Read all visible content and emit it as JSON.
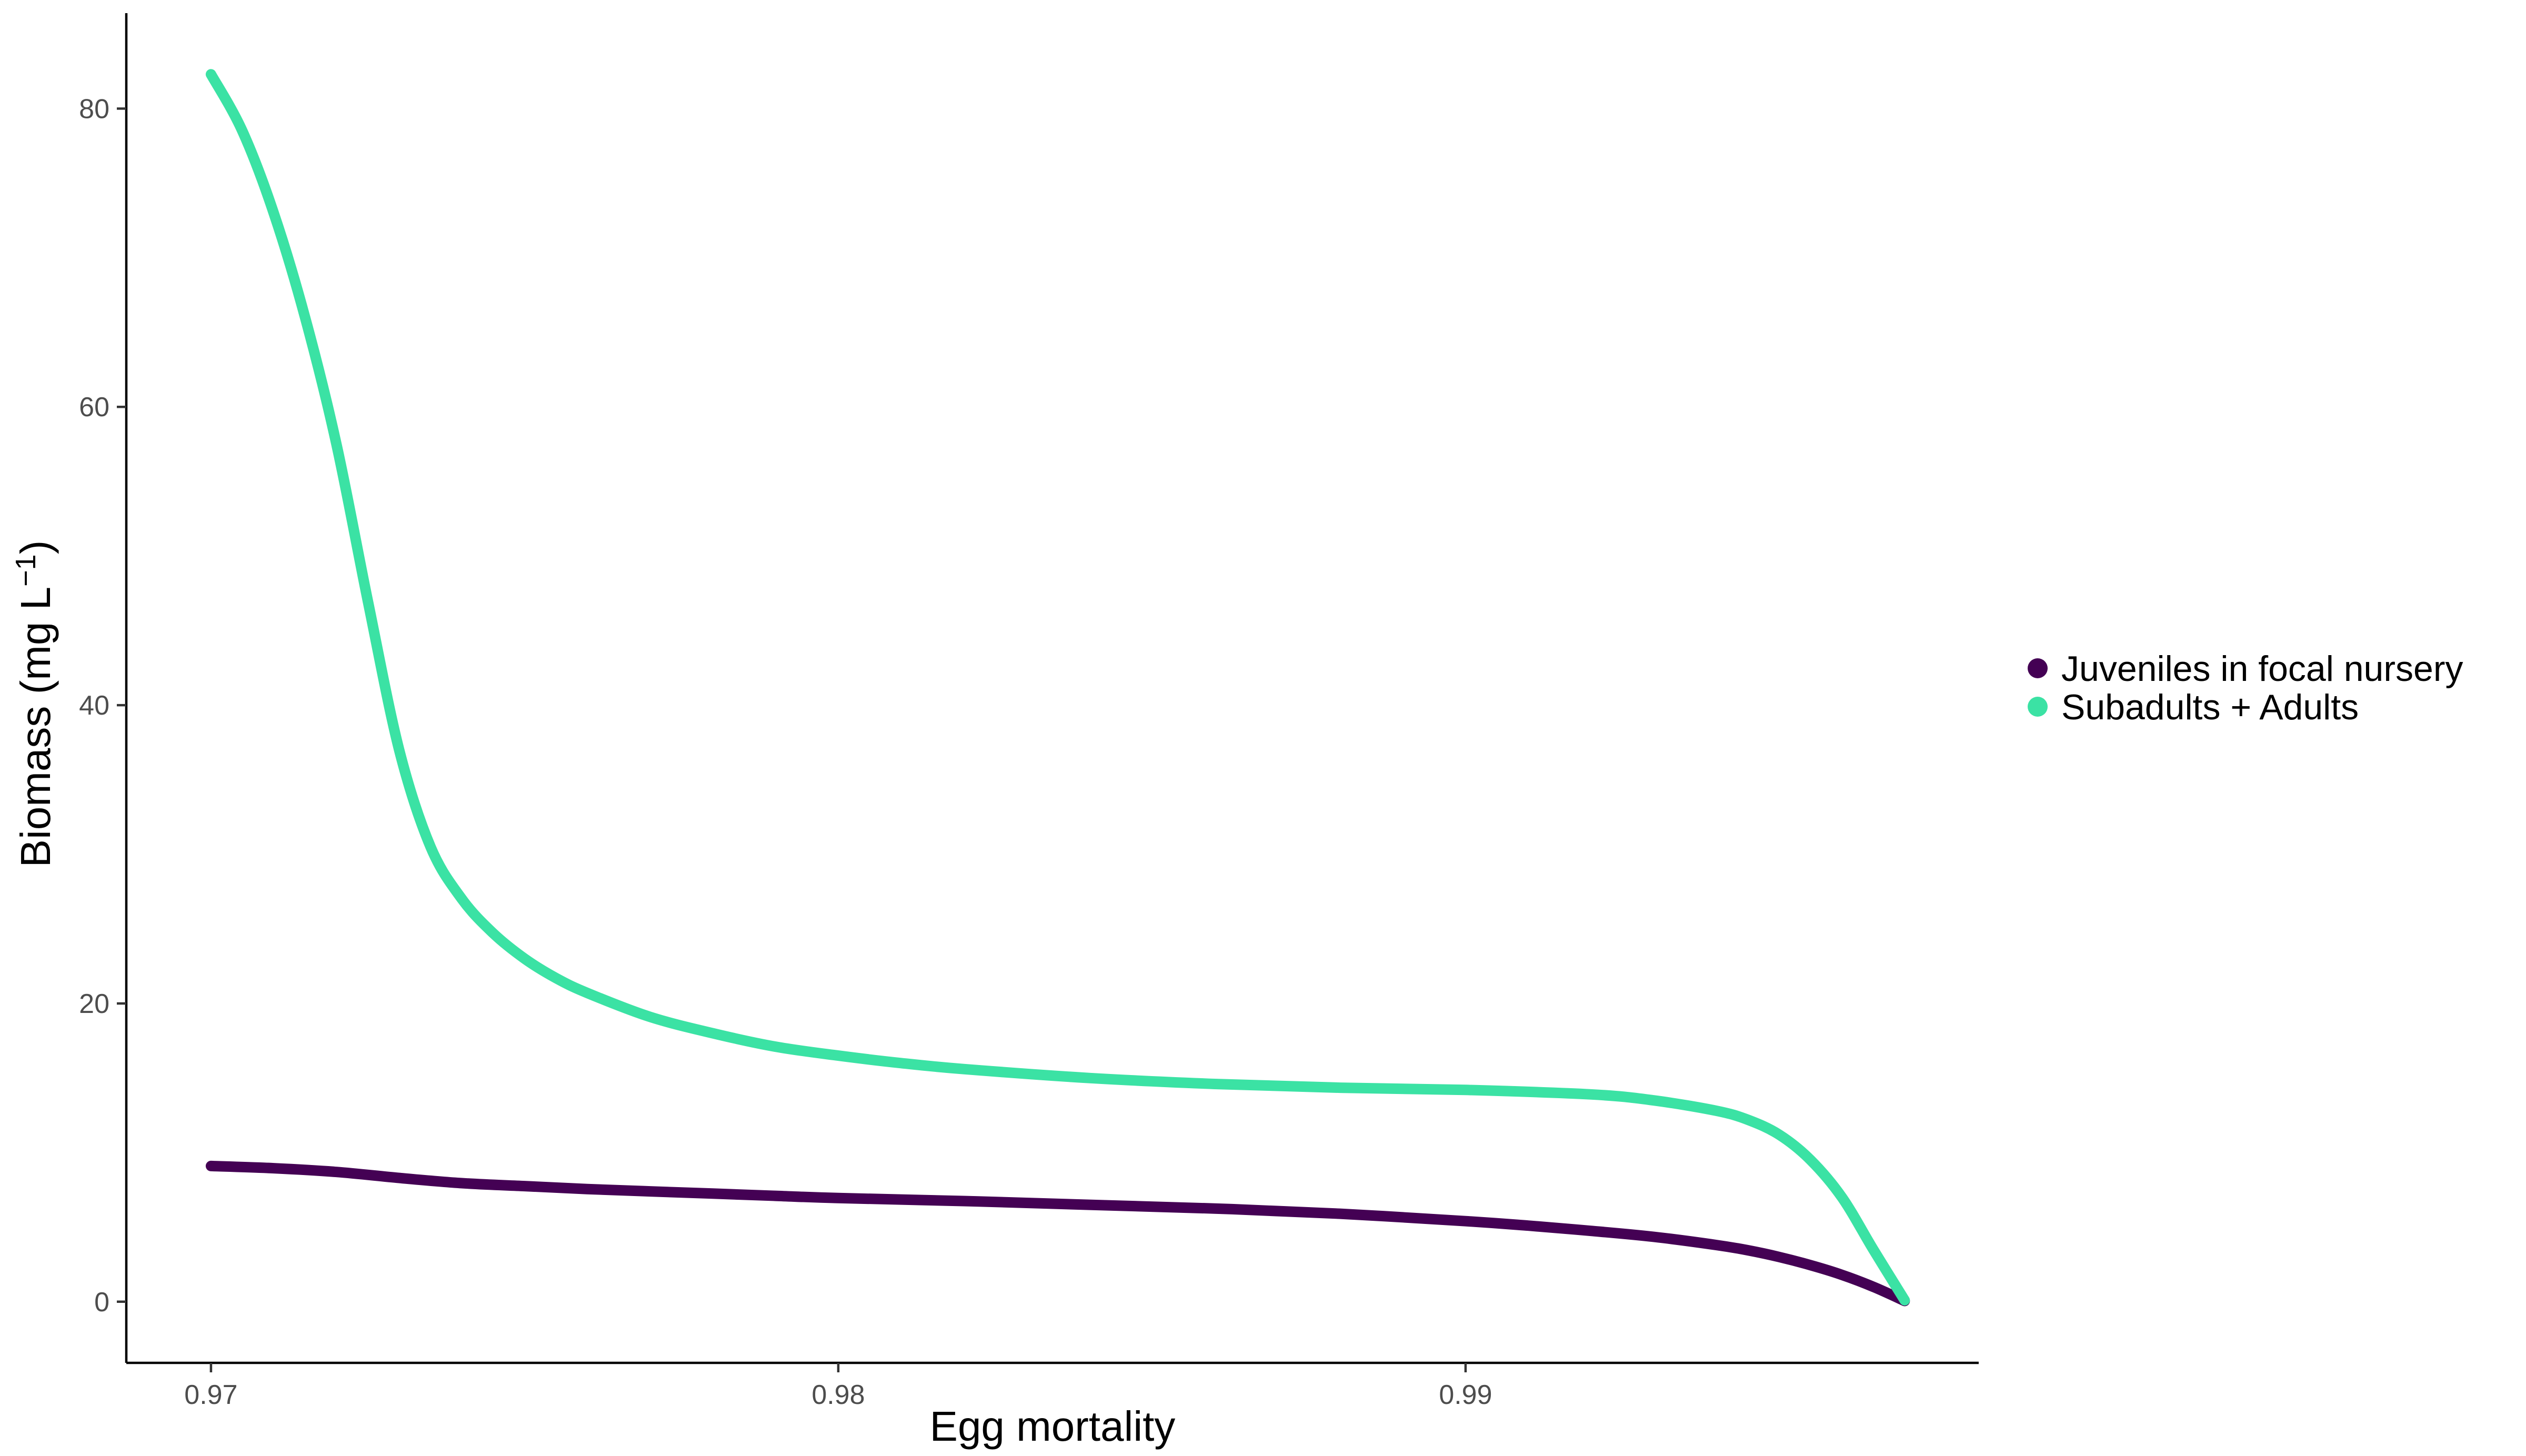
{
  "chart_data": {
    "type": "line",
    "title": "",
    "xlabel": "Egg mortality",
    "ylabel_main": "Biomass (mg L",
    "ylabel_sup": "−1",
    "ylabel_close": ")",
    "xlim": [
      0.96865,
      0.99818
    ],
    "ylim": [
      -4.1,
      86.4
    ],
    "x_ticks": [
      0.97,
      0.98,
      0.99
    ],
    "x_tick_labels": [
      "0.97",
      "0.98",
      "0.99"
    ],
    "y_ticks": [
      0,
      20,
      40,
      60,
      80
    ],
    "y_tick_labels": [
      "0",
      "20",
      "40",
      "60",
      "80"
    ],
    "grid": false,
    "legend_position": "right",
    "series": [
      {
        "name": "Juveniles in focal nursery",
        "color": "#440154",
        "x": [
          0.97,
          0.971,
          0.972,
          0.973,
          0.974,
          0.975,
          0.976,
          0.977,
          0.978,
          0.979,
          0.98,
          0.982,
          0.984,
          0.986,
          0.988,
          0.99,
          0.991,
          0.992,
          0.993,
          0.994,
          0.9945,
          0.995,
          0.9955,
          0.996,
          0.9965,
          0.997
        ],
        "y": [
          9.1,
          8.95,
          8.7,
          8.3,
          7.95,
          7.75,
          7.55,
          7.4,
          7.25,
          7.1,
          6.95,
          6.75,
          6.5,
          6.25,
          5.9,
          5.4,
          5.1,
          4.75,
          4.35,
          3.8,
          3.45,
          3.0,
          2.45,
          1.8,
          1.0,
          0.05
        ]
      },
      {
        "name": "Subadults + Adults",
        "color": "#3BE2A4",
        "x": [
          0.97,
          0.9705,
          0.971,
          0.9715,
          0.972,
          0.9725,
          0.973,
          0.9735,
          0.974,
          0.9745,
          0.975,
          0.9755,
          0.976,
          0.977,
          0.978,
          0.979,
          0.98,
          0.981,
          0.982,
          0.984,
          0.986,
          0.988,
          0.99,
          0.992,
          0.993,
          0.994,
          0.9945,
          0.995,
          0.9955,
          0.996,
          0.9965,
          0.997
        ],
        "y": [
          82.3,
          78.5,
          73.0,
          66.0,
          57.5,
          47.0,
          37.0,
          30.5,
          27.0,
          24.7,
          23.0,
          21.7,
          20.7,
          19.1,
          18.0,
          17.1,
          16.5,
          16.0,
          15.6,
          15.0,
          14.6,
          14.35,
          14.2,
          13.9,
          13.5,
          12.8,
          12.2,
          11.2,
          9.5,
          7.0,
          3.5,
          0.1
        ]
      }
    ]
  }
}
